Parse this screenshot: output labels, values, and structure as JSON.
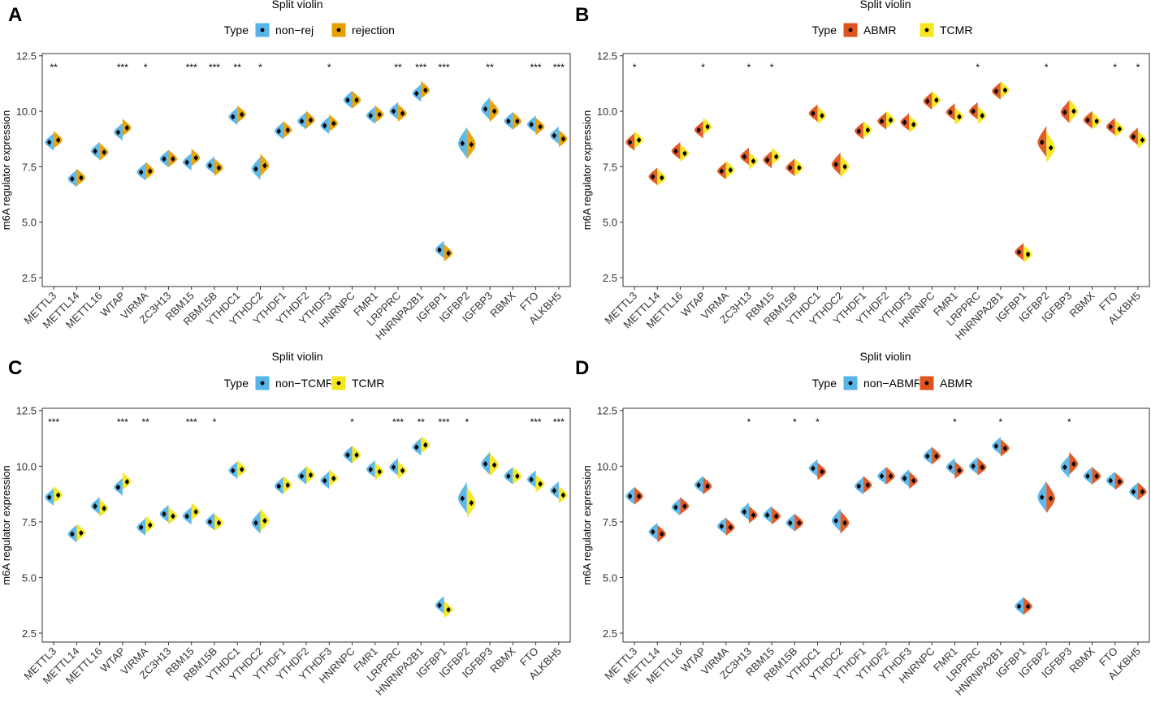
{
  "colors": {
    "non_rej": "#56B4E9",
    "rejection": "#E69F00",
    "ABMR": "#E0531E",
    "TCMR": "#F5E61E",
    "non_TCMR": "#56B4E9",
    "non_ABMR": "#56B4E9",
    "axis": "#333333",
    "text": "#000000"
  },
  "chart_data": [
    {
      "panel": "A",
      "type": "split-violin",
      "title": "Split violin",
      "legend": {
        "title": "Type",
        "position": "top",
        "entries": [
          "non−rej",
          "rejection"
        ]
      },
      "ylabel": "m6A regulator expression",
      "ylim": [
        2.1,
        12.6
      ],
      "yticks": [
        "2.5",
        "5.0",
        "7.5",
        "10.0",
        "12.5"
      ],
      "categories": [
        "METTL3",
        "METTL14",
        "METTL16",
        "WTAP",
        "VIRMA",
        "ZC3H13",
        "RBM15",
        "RBM15B",
        "YTHDC1",
        "YTHDC2",
        "YTHDF1",
        "YTHDF2",
        "YTHDF3",
        "HNRNPC",
        "FMR1",
        "LRPPRC",
        "HNRNPA2B1",
        "IGFBP1",
        "IGFBP2",
        "IGFBP3",
        "RBMX",
        "FTO",
        "ALKBH5"
      ],
      "series": [
        {
          "name": "non−rej",
          "values": [
            8.6,
            6.95,
            8.2,
            9.05,
            7.25,
            7.85,
            7.7,
            7.55,
            9.75,
            7.4,
            9.1,
            9.55,
            9.35,
            10.5,
            9.8,
            10.0,
            10.8,
            3.75,
            8.55,
            10.1,
            9.55,
            9.4,
            8.9
          ]
        },
        {
          "name": "rejection",
          "values": [
            8.7,
            7.0,
            8.15,
            9.25,
            7.3,
            7.85,
            7.9,
            7.45,
            9.85,
            7.55,
            9.15,
            9.6,
            9.45,
            10.5,
            9.85,
            9.9,
            10.95,
            3.6,
            8.5,
            10.0,
            9.55,
            9.3,
            8.75
          ]
        }
      ],
      "significance": [
        "**",
        "",
        "",
        "***",
        "*",
        "",
        "***",
        "***",
        "**",
        "*",
        "",
        "",
        "*",
        "",
        "",
        "**",
        "***",
        "***",
        "",
        "**",
        "",
        "***",
        "***"
      ]
    },
    {
      "panel": "B",
      "type": "split-violin",
      "title": "Split violin",
      "legend": {
        "title": "Type",
        "position": "top",
        "entries": [
          "ABMR",
          "TCMR"
        ]
      },
      "ylabel": "m6A regulator expression",
      "ylim": [
        2.1,
        12.6
      ],
      "yticks": [
        "2.5",
        "5.0",
        "7.5",
        "10.0",
        "12.5"
      ],
      "categories": [
        "METTL3",
        "METTL14",
        "METTL16",
        "WTAP",
        "VIRMA",
        "ZC3H13",
        "RBM15",
        "RBM15B",
        "YTHDC1",
        "YTHDC2",
        "YTHDF1",
        "YTHDF2",
        "YTHDF3",
        "HNRNPC",
        "FMR1",
        "LRPPRC",
        "HNRNPA2B1",
        "IGFBP1",
        "IGFBP2",
        "IGFBP3",
        "RBMX",
        "FTO",
        "ALKBH5"
      ],
      "series": [
        {
          "name": "ABMR",
          "values": [
            8.6,
            7.05,
            8.2,
            9.15,
            7.3,
            7.95,
            7.8,
            7.45,
            9.9,
            7.6,
            9.1,
            9.55,
            9.5,
            10.45,
            9.95,
            10.0,
            10.9,
            3.65,
            8.6,
            9.95,
            9.6,
            9.3,
            8.85
          ]
        },
        {
          "name": "TCMR",
          "values": [
            8.7,
            7.0,
            8.1,
            9.3,
            7.35,
            7.75,
            7.95,
            7.45,
            9.8,
            7.5,
            9.15,
            9.6,
            9.4,
            10.5,
            9.75,
            9.8,
            10.95,
            3.55,
            8.35,
            10.0,
            9.55,
            9.2,
            8.7
          ]
        }
      ],
      "significance": [
        "*",
        "",
        "",
        "*",
        "",
        "*",
        "*",
        "",
        "",
        "",
        "",
        "",
        "",
        "",
        "",
        "*",
        "",
        "",
        "*",
        "",
        "",
        "*",
        "*"
      ]
    },
    {
      "panel": "C",
      "type": "split-violin",
      "title": "Split violin",
      "legend": {
        "title": "Type",
        "position": "top",
        "entries": [
          "non−TCMR",
          "TCMR"
        ]
      },
      "ylabel": "m6A regulator expression",
      "ylim": [
        2.1,
        12.6
      ],
      "yticks": [
        "2.5",
        "5.0",
        "7.5",
        "10.0",
        "12.5"
      ],
      "categories": [
        "METTL3",
        "METTL14",
        "METTL16",
        "WTAP",
        "VIRMA",
        "ZC3H13",
        "RBM15",
        "RBM15B",
        "YTHDC1",
        "YTHDC2",
        "YTHDF1",
        "YTHDF2",
        "YTHDF3",
        "HNRNPC",
        "FMR1",
        "LRPPRC",
        "HNRNPA2B1",
        "IGFBP1",
        "IGFBP2",
        "IGFBP3",
        "RBMX",
        "FTO",
        "ALKBH5"
      ],
      "series": [
        {
          "name": "non−TCMR",
          "values": [
            8.6,
            6.95,
            8.2,
            9.05,
            7.25,
            7.85,
            7.75,
            7.5,
            9.8,
            7.45,
            9.1,
            9.55,
            9.35,
            10.5,
            9.85,
            9.95,
            10.85,
            3.75,
            8.55,
            10.1,
            9.55,
            9.4,
            8.9
          ]
        },
        {
          "name": "TCMR",
          "values": [
            8.7,
            7.0,
            8.1,
            9.3,
            7.35,
            7.75,
            7.95,
            7.45,
            9.85,
            7.55,
            9.15,
            9.6,
            9.45,
            10.5,
            9.75,
            9.8,
            10.95,
            3.55,
            8.35,
            10.05,
            9.55,
            9.2,
            8.7
          ]
        }
      ],
      "significance": [
        "***",
        "",
        "",
        "***",
        "**",
        "",
        "***",
        "*",
        "",
        "",
        "",
        "",
        "",
        "*",
        "",
        "***",
        "**",
        "***",
        "*",
        "",
        "",
        "***",
        "***"
      ]
    },
    {
      "panel": "D",
      "type": "split-violin",
      "title": "Split violin",
      "legend": {
        "title": "Type",
        "position": "top",
        "entries": [
          "non−ABMR",
          "ABMR"
        ]
      },
      "ylabel": "m6A regulator expression",
      "ylim": [
        2.1,
        12.6
      ],
      "yticks": [
        "2.5",
        "5.0",
        "7.5",
        "10.0",
        "12.5"
      ],
      "categories": [
        "METTL3",
        "METTL14",
        "METTL16",
        "WTAP",
        "VIRMA",
        "ZC3H13",
        "RBM15",
        "RBM15B",
        "YTHDC1",
        "YTHDC2",
        "YTHDF1",
        "YTHDF2",
        "YTHDF3",
        "HNRNPC",
        "FMR1",
        "LRPPRC",
        "HNRNPA2B1",
        "IGFBP1",
        "IGFBP2",
        "IGFBP3",
        "RBMX",
        "FTO",
        "ALKBH5"
      ],
      "series": [
        {
          "name": "non−ABMR",
          "values": [
            8.65,
            7.05,
            8.15,
            9.15,
            7.3,
            7.95,
            7.8,
            7.45,
            9.9,
            7.55,
            9.1,
            9.55,
            9.45,
            10.45,
            9.95,
            10.0,
            10.9,
            3.7,
            8.6,
            9.95,
            9.55,
            9.35,
            8.85
          ]
        },
        {
          "name": "ABMR",
          "values": [
            8.65,
            6.95,
            8.2,
            9.1,
            7.25,
            7.8,
            7.75,
            7.45,
            9.75,
            7.45,
            9.15,
            9.55,
            9.35,
            10.45,
            9.8,
            9.95,
            10.8,
            3.7,
            8.55,
            10.1,
            9.55,
            9.3,
            8.85
          ]
        }
      ],
      "significance": [
        "",
        "",
        "",
        "",
        "",
        "*",
        "",
        "*",
        "*",
        "",
        "",
        "",
        "",
        "",
        "*",
        "",
        "*",
        "",
        "",
        "*",
        "",
        "",
        ""
      ]
    }
  ]
}
